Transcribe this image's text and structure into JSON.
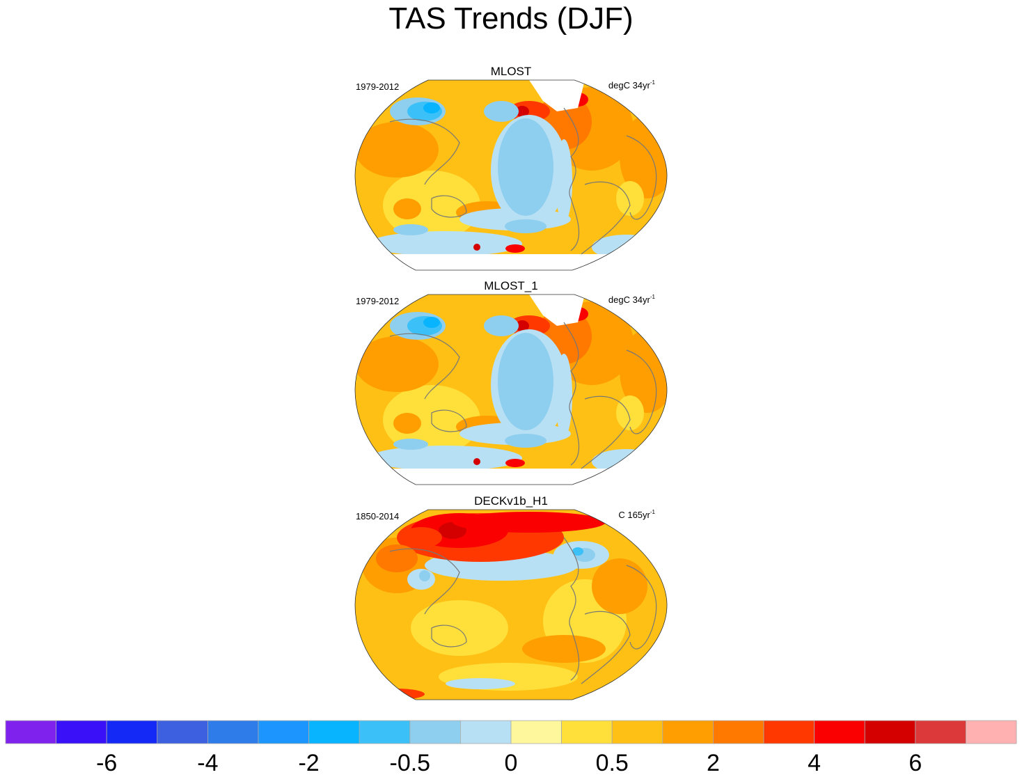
{
  "chart_data": {
    "type": "heatmap",
    "title": "TAS Trends (DJF)",
    "panels": [
      {
        "name": "MLOST",
        "period": "1979-2012",
        "units": "degC 34yr",
        "units_sup": "-1",
        "pattern": "obs"
      },
      {
        "name": "MLOST_1",
        "period": "1979-2012",
        "units": "degC 34yr",
        "units_sup": "-1",
        "pattern": "obs"
      },
      {
        "name": "DECKv1b_H1",
        "period": "1850-2014",
        "units": "C 165yr",
        "units_sup": "-1",
        "pattern": "model"
      }
    ],
    "colorbar": {
      "colors": [
        "#7F22EE",
        "#3A10F8",
        "#1428F6",
        "#3C60E0",
        "#2E7BEA",
        "#1C96FE",
        "#08B4FE",
        "#3CC0F8",
        "#8ECEEE",
        "#B8E0F4",
        "#FFF79C",
        "#FFE03A",
        "#FFC016",
        "#FF9E00",
        "#FF7800",
        "#FF3800",
        "#FA0000",
        "#D40000",
        "#DC3A3A",
        "#FFB0B0"
      ],
      "tick_labels": [
        "-6",
        "-4",
        "-2",
        "-0.5",
        "0",
        "0.5",
        "2",
        "4",
        "6"
      ],
      "tick_boundary_index": [
        2,
        4,
        6,
        8,
        10,
        12,
        14,
        16,
        18
      ]
    }
  }
}
